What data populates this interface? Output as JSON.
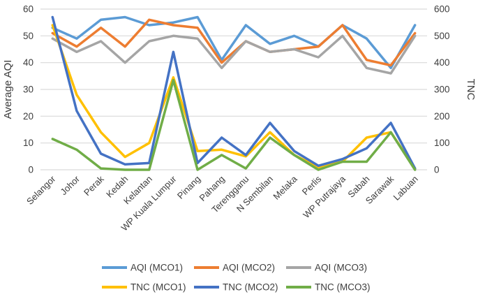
{
  "figure": {
    "type": "dual-axis-line-chart",
    "background": "#ffffff",
    "gridline_color": "#d9d9d9",
    "text_color": "#3d3d3d"
  },
  "chart_data": {
    "type": "line",
    "title": "",
    "categories": [
      "Selangor",
      "Johor",
      "Perak",
      "Kedah",
      "Kelantan",
      "WP Kuala Lumpur",
      "Pinang",
      "Pahang",
      "Terengganu",
      "N Sembilan",
      "Melaka",
      "Perlis",
      "WP Putrajaya",
      "Sabah",
      "Sarawak",
      "Labuan"
    ],
    "left_axis": {
      "label": "Average AQI",
      "min": 0,
      "max": 60,
      "step": 10,
      "ticks": [
        "0",
        "10",
        "20",
        "30",
        "40",
        "50",
        "60"
      ]
    },
    "right_axis": {
      "label": "TNC",
      "min": 0,
      "max": 600,
      "step": 100,
      "ticks": [
        "0",
        "100",
        "200",
        "300",
        "400",
        "500",
        "600"
      ]
    },
    "grid": true,
    "legend_position": "bottom",
    "legend_rows": [
      [
        "AQI (MCO1)",
        "AQI (MCO2)",
        "AQI (MCO3)"
      ],
      [
        "TNC (MCO1)",
        "TNC (MCO2)",
        "TNC (MCO3)"
      ]
    ],
    "series": [
      {
        "name": "AQI (MCO1)",
        "axis": "left",
        "color": "#5B9BD5",
        "values": [
          53,
          49,
          56,
          57,
          54,
          55,
          57,
          41,
          54,
          47,
          50,
          46,
          54,
          49,
          38,
          54
        ]
      },
      {
        "name": "AQI (MCO2)",
        "axis": "left",
        "color": "#ED7D31",
        "values": [
          51,
          46,
          53,
          46,
          56,
          54,
          53,
          40,
          48,
          44,
          45,
          46,
          54,
          41,
          39,
          51
        ]
      },
      {
        "name": "AQI (MCO3)",
        "axis": "left",
        "color": "#A5A5A5",
        "values": [
          49,
          44,
          48,
          40,
          48,
          50,
          49,
          38,
          48,
          44,
          45,
          42,
          50,
          38,
          36,
          50
        ]
      },
      {
        "name": "TNC (MCO1)",
        "axis": "right",
        "color": "#FFC000",
        "values": [
          540,
          280,
          140,
          48,
          100,
          345,
          70,
          75,
          50,
          140,
          55,
          10,
          30,
          120,
          140,
          5
        ]
      },
      {
        "name": "TNC (MCO2)",
        "axis": "right",
        "color": "#4472C4",
        "values": [
          570,
          220,
          60,
          20,
          25,
          440,
          25,
          120,
          55,
          175,
          70,
          15,
          40,
          80,
          175,
          5
        ]
      },
      {
        "name": "TNC (MCO3)",
        "axis": "right",
        "color": "#70AD47",
        "values": [
          115,
          75,
          5,
          0,
          0,
          335,
          0,
          55,
          5,
          120,
          55,
          0,
          30,
          30,
          140,
          0
        ]
      }
    ]
  }
}
